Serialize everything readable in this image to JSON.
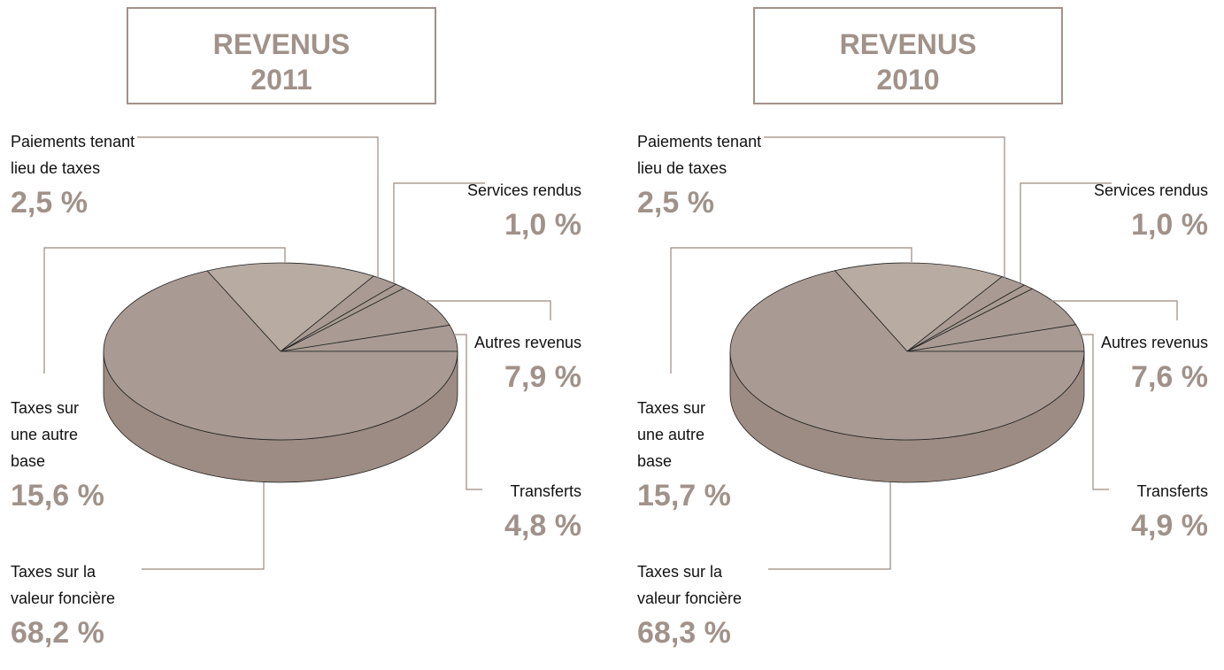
{
  "chart_data": [
    {
      "type": "pie",
      "title": "REVENUS",
      "subtitle": "2011",
      "categories": [
        "Transferts",
        "Autres revenus",
        "Services rendus",
        "Paiements tenant lieu de taxes",
        "Taxes sur une autre base",
        "Taxes sur la valeur foncière"
      ],
      "values": [
        4.8,
        7.9,
        1.0,
        2.5,
        15.6,
        68.2
      ],
      "value_labels": [
        "4,8 %",
        "7,9 %",
        "1,0 %",
        "2,5 %",
        "15,6 %",
        "68,2 %"
      ],
      "colors": [
        "#a99b93",
        "#a99b93",
        "#a99b93",
        "#a99b93",
        "#b8aba2",
        "#a99b93"
      ],
      "side_color": "#9d8c83"
    },
    {
      "type": "pie",
      "title": "REVENUS",
      "subtitle": "2010",
      "categories": [
        "Transferts",
        "Autres revenus",
        "Services rendus",
        "Paiements tenant lieu de taxes",
        "Taxes sur une autre base",
        "Taxes sur la valeur foncière"
      ],
      "values": [
        4.9,
        7.6,
        1.0,
        2.5,
        15.7,
        68.3
      ],
      "value_labels": [
        "4,9 %",
        "7,6 %",
        "1,0 %",
        "2,5 %",
        "15,7 %",
        "68,3 %"
      ],
      "colors": [
        "#a99b93",
        "#a99b93",
        "#a99b93",
        "#a99b93",
        "#b8aba2",
        "#a99b93"
      ],
      "side_color": "#9d8c83"
    }
  ]
}
